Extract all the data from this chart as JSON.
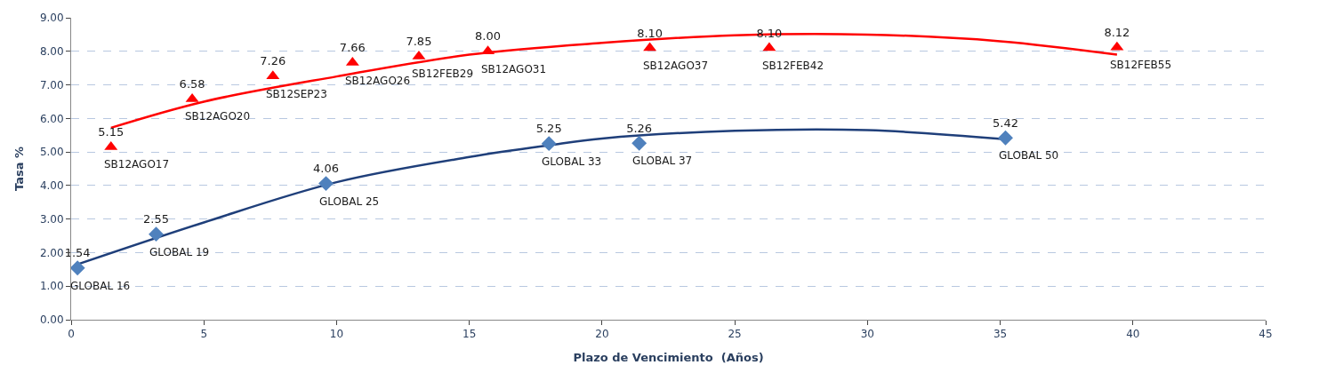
{
  "chart_data": {
    "type": "scatter",
    "xlabel": "Plazo de Vencimiento  (Años)",
    "ylabel": "Tasa %",
    "xlim": [
      0,
      45
    ],
    "xticks": [
      0,
      5,
      10,
      15,
      20,
      25,
      30,
      35,
      40,
      45
    ],
    "ylim": [
      0,
      9
    ],
    "yticks": [
      {
        "value": 0,
        "label": "0.00"
      },
      {
        "value": 1,
        "label": "1.00"
      },
      {
        "value": 2,
        "label": "2.00"
      },
      {
        "value": 3,
        "label": "3.00"
      },
      {
        "value": 4,
        "label": "4.00"
      },
      {
        "value": 5,
        "label": "5.00"
      },
      {
        "value": 6,
        "label": "6.00"
      },
      {
        "value": 7,
        "label": "7.00"
      },
      {
        "value": 8,
        "label": "8.00"
      },
      {
        "value": 9,
        "label": "9.00"
      }
    ],
    "grid": "y",
    "series": [
      {
        "type": "line",
        "color": "#ff0000",
        "marker": "none",
        "x": [
          1.5,
          5,
          10,
          15,
          20,
          25,
          30,
          35,
          39.4
        ],
        "values": [
          5.72,
          6.5,
          7.25,
          7.9,
          8.25,
          8.48,
          8.5,
          8.3,
          7.9
        ]
      },
      {
        "type": "line",
        "color": "#1f3f7a",
        "marker": "none",
        "x": [
          0.24,
          5,
          10,
          15,
          18,
          20,
          25,
          30,
          35.2
        ],
        "values": [
          1.65,
          2.9,
          4.1,
          4.85,
          5.2,
          5.4,
          5.63,
          5.65,
          5.38
        ]
      },
      {
        "type": "scatter",
        "color": "#ff0000",
        "marker": "triangle",
        "x": [
          1.5,
          4.56,
          7.6,
          10.6,
          13.1,
          15.7,
          21.8,
          26.3,
          39.4
        ],
        "values": [
          5.15,
          6.58,
          7.26,
          7.66,
          7.85,
          8.0,
          8.1,
          8.1,
          8.12
        ],
        "value_labels": [
          "5.15",
          "6.58",
          "7.26",
          "7.66",
          "7.85",
          "8.00",
          "8.10",
          "8.10",
          "8.12"
        ]
      },
      {
        "type": "scatter",
        "color": "#4f81bd",
        "marker": "diamond",
        "x": [
          0.24,
          3.2,
          9.6,
          18.0,
          21.4,
          35.2
        ],
        "values": [
          1.54,
          2.55,
          4.06,
          5.25,
          5.26,
          5.42
        ],
        "value_labels": [
          "1.54",
          "2.55",
          "4.06",
          "5.25",
          "5.26",
          "5.42"
        ]
      }
    ],
    "annotations": [
      {
        "text": "SB12AGO17",
        "x": 1.5,
        "y": 5.15
      },
      {
        "text": "SB12AGO20",
        "x": 4.56,
        "y": 6.58
      },
      {
        "text": "SB12SEP23",
        "x": 7.6,
        "y": 7.26
      },
      {
        "text": "SB12AGO26",
        "x": 10.6,
        "y": 7.66
      },
      {
        "text": "SB12FEB29",
        "x": 13.1,
        "y": 7.85
      },
      {
        "text": "SB12AGO31",
        "x": 15.7,
        "y": 8.0
      },
      {
        "text": "SB12AGO37",
        "x": 21.8,
        "y": 8.1
      },
      {
        "text": "SB12FEB42",
        "x": 26.3,
        "y": 8.1
      },
      {
        "text": "SB12FEB55",
        "x": 39.4,
        "y": 8.12
      },
      {
        "text": "GLOBAL 16",
        "x": 0.24,
        "y": 1.54
      },
      {
        "text": "GLOBAL 19",
        "x": 3.2,
        "y": 2.55
      },
      {
        "text": "GLOBAL 25",
        "x": 9.6,
        "y": 4.06
      },
      {
        "text": "GLOBAL 33",
        "x": 18.0,
        "y": 5.25
      },
      {
        "text": "GLOBAL 37",
        "x": 21.4,
        "y": 5.26
      },
      {
        "text": "GLOBAL 50",
        "x": 35.2,
        "y": 5.42
      }
    ]
  }
}
